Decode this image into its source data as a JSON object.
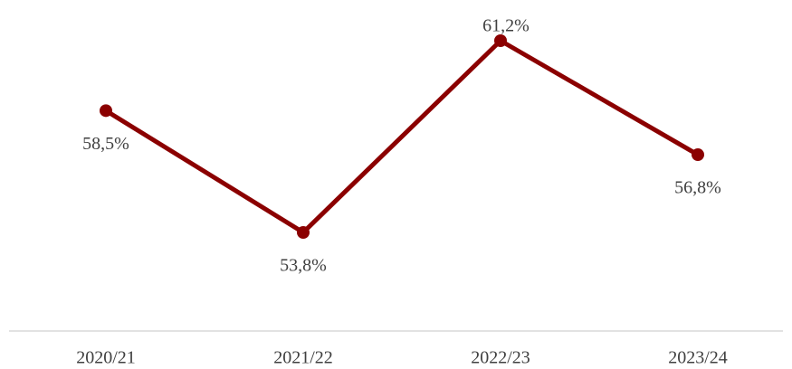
{
  "chart_data": {
    "type": "line",
    "categories": [
      "2020/21",
      "2021/22",
      "2022/23",
      "2023/24"
    ],
    "series": [
      {
        "color": "#8b0000",
        "values": [
          58.5,
          53.8,
          61.2,
          56.8
        ],
        "value_labels": [
          "58,5%",
          "53,8%",
          "61,2%",
          "56,8%"
        ]
      }
    ]
  }
}
